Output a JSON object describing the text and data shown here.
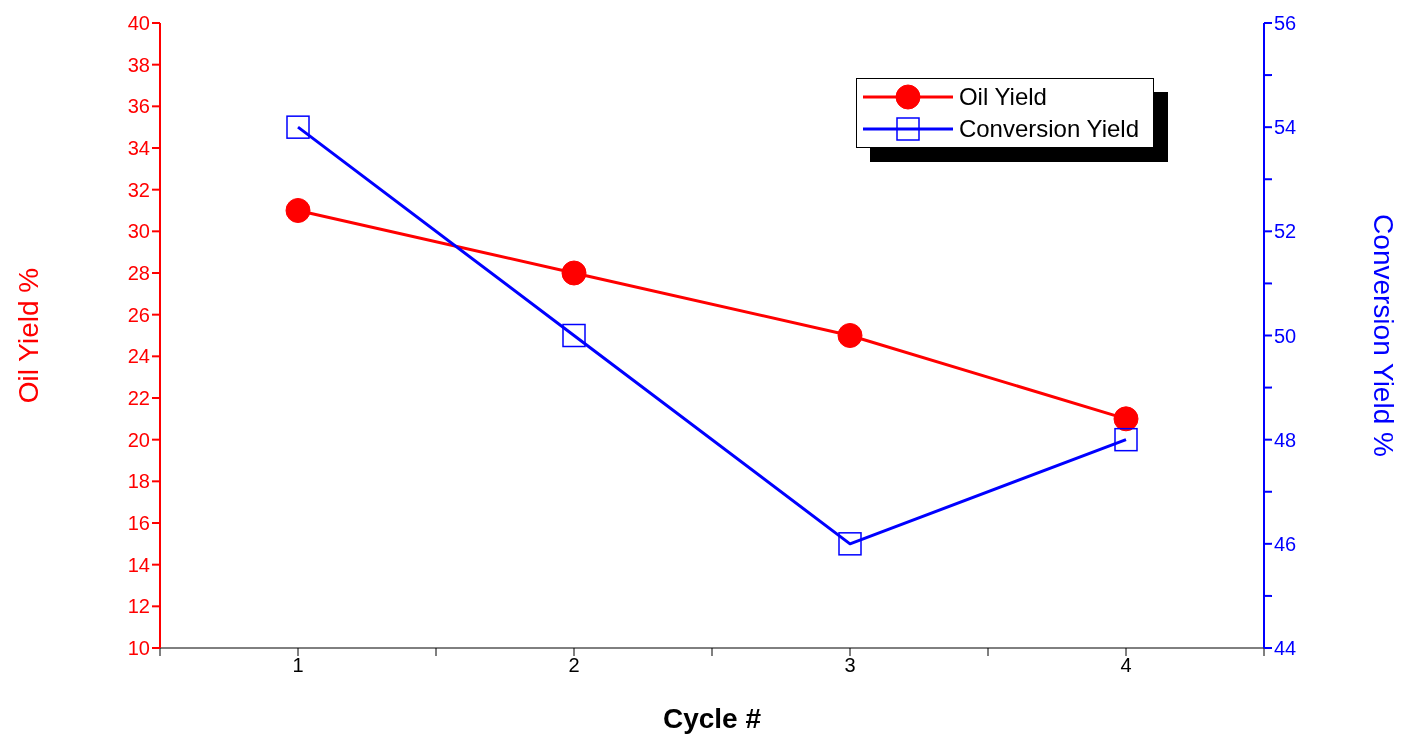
{
  "chart_data": {
    "type": "line",
    "xlabel": "Cycle #",
    "ylabel": "Oil Yield %",
    "y2label": "Conversion Yield %",
    "x": [
      1,
      2,
      3,
      4
    ],
    "series": [
      {
        "name": "Oil Yield",
        "color": "#ff0000",
        "values": [
          31,
          28,
          25,
          21
        ],
        "marker": "circle"
      },
      {
        "name": "Conversion Yield",
        "color": "#0000ff",
        "values": [
          54,
          50,
          46,
          48
        ],
        "axis": "y2",
        "marker": "square"
      }
    ],
    "xlim": [
      0.5,
      4.5
    ],
    "xticks": [
      {
        "value": 0.5,
        "label": null
      },
      1,
      {
        "value": 1.5,
        "label": null
      },
      2,
      {
        "value": 2.5,
        "label": null
      },
      3,
      {
        "value": 3.5,
        "label": null
      },
      4,
      {
        "value": 4.5,
        "label": null
      }
    ],
    "ylim": [
      10,
      40
    ],
    "yticks": [
      10,
      12,
      14,
      16,
      18,
      20,
      22,
      24,
      26,
      28,
      30,
      32,
      34,
      36,
      38,
      40
    ],
    "y2lim": [
      44,
      56
    ],
    "y2ticks": [
      44,
      {
        "value": 45,
        "label": null
      },
      46,
      {
        "value": 47,
        "label": null
      },
      48,
      {
        "value": 49,
        "label": null
      },
      50,
      {
        "value": 51,
        "label": null
      },
      52,
      {
        "value": 53,
        "label": null
      },
      54,
      {
        "value": 55,
        "label": null
      },
      56
    ],
    "legend": "top right",
    "grid": false
  }
}
